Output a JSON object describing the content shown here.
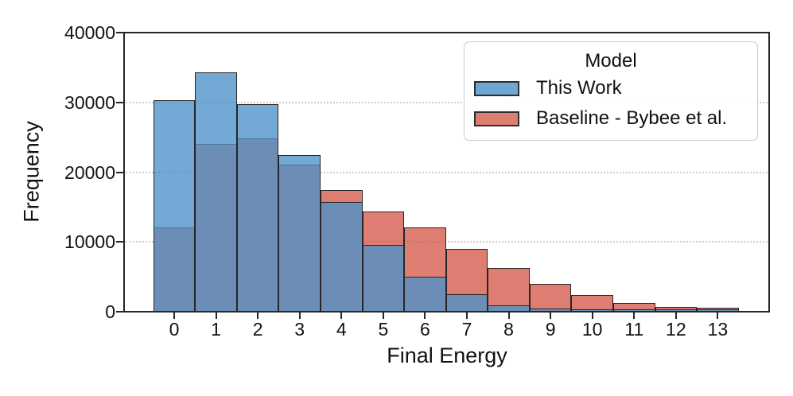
{
  "figure": {
    "background": "#ffffff",
    "text_color": "#111111",
    "spine_color": "#262626"
  },
  "y_axis": {
    "label": "Frequency",
    "tick_labels": [
      "0",
      "10000",
      "20000",
      "30000",
      "40000"
    ]
  },
  "x_axis": {
    "label": "Final Energy",
    "tick_labels": [
      "0",
      "1",
      "2",
      "3",
      "4",
      "5",
      "6",
      "7",
      "8",
      "9",
      "10",
      "11",
      "12",
      "13"
    ]
  },
  "legend": {
    "title": "Model",
    "items": [
      {
        "label": "This Work",
        "color": "#6FA6D2"
      },
      {
        "label": "Baseline - Bybee et al.",
        "color": "#DE7E71"
      }
    ]
  },
  "chart_data": {
    "type": "bar",
    "subtype": "overlaid-histogram",
    "title": "",
    "xlabel": "Final Energy",
    "ylabel": "Frequency",
    "categories": [
      0,
      1,
      2,
      3,
      4,
      5,
      6,
      7,
      8,
      9,
      10,
      11,
      12,
      13
    ],
    "bin_width": 1,
    "series": [
      {
        "name": "This Work",
        "values": [
          30300,
          34300,
          29800,
          22400,
          15700,
          9600,
          5000,
          2500,
          950,
          400,
          150,
          80,
          40,
          25
        ],
        "fill": "rgba(75,145,200,0.78)",
        "apparent_color": "#73A9D4",
        "edge": "#262626"
      },
      {
        "name": "Baseline - Bybee et al.",
        "values": [
          12100,
          24100,
          24800,
          21100,
          17400,
          14400,
          12100,
          9000,
          6300,
          4000,
          2400,
          1300,
          700,
          550
        ],
        "fill": "rgba(213,90,74,0.78)",
        "apparent_color": "#DE7E71",
        "edge": "#262626"
      }
    ],
    "draw_order": [
      1,
      0
    ],
    "overlap_apparent_color": "#6A8FB2",
    "ylim": [
      0,
      40000
    ],
    "yticks": [
      0,
      10000,
      20000,
      30000,
      40000
    ],
    "xticks": [
      0,
      1,
      2,
      3,
      4,
      5,
      6,
      7,
      8,
      9,
      10,
      11,
      12,
      13
    ],
    "grid": {
      "horizontal": true,
      "style": "dotted",
      "color": "#cdcdcd"
    },
    "legend_position": "upper right"
  }
}
